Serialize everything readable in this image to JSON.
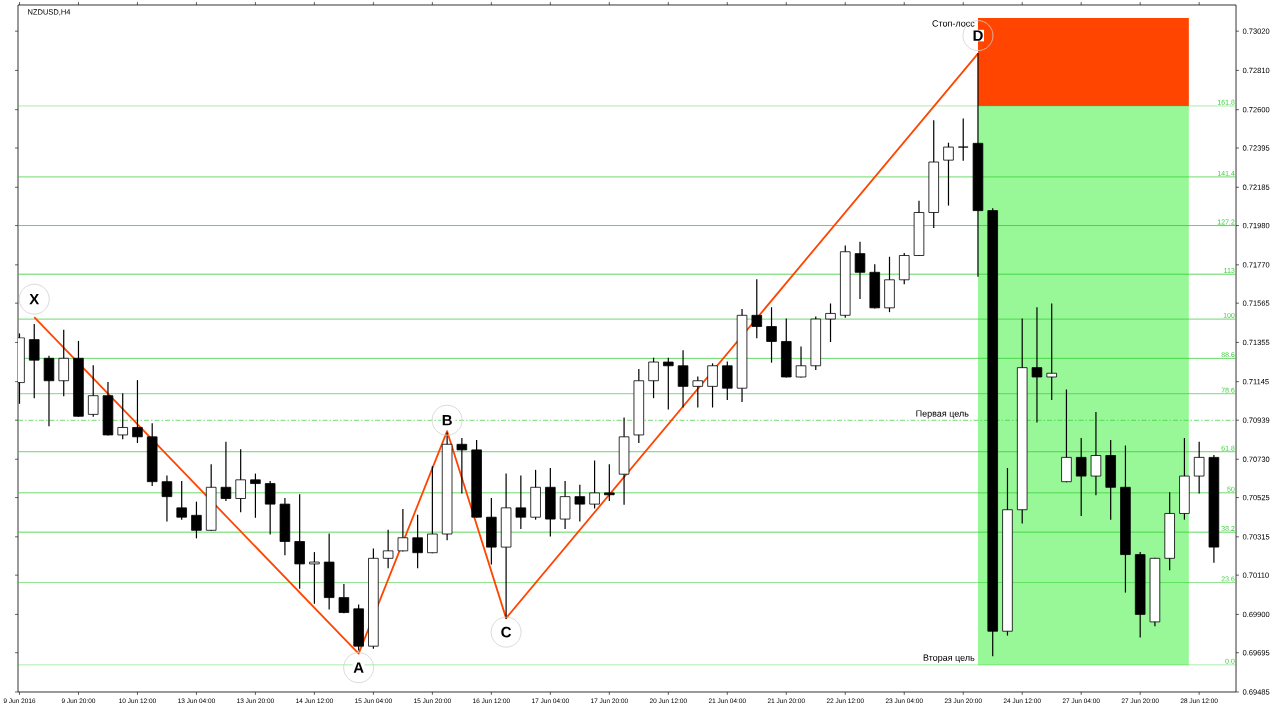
{
  "chart_data": {
    "type": "candlestick",
    "title": "NZDUSD,H4",
    "categories": [
      "9 Jun 2016",
      null,
      null,
      null,
      "9 Jun 20:00",
      null,
      null,
      null,
      "10 Jun 12:00",
      null,
      null,
      null,
      "13 Jun 04:00",
      null,
      null,
      null,
      "13 Jun 20:00",
      null,
      null,
      null,
      "14 Jun 12:00",
      null,
      null,
      null,
      "15 Jun 04:00",
      null,
      null,
      null,
      "15 Jun 20:00",
      null,
      null,
      null,
      "16 Jun 12:00",
      null,
      null,
      null,
      "17 Jun 04:00",
      null,
      null,
      null,
      "17 Jun 20:00",
      null,
      null,
      null,
      "20 Jun 12:00",
      null,
      null,
      null,
      "21 Jun 04:00",
      null,
      null,
      null,
      "21 Jun 20:00",
      null,
      null,
      null,
      "22 Jun 12:00",
      null,
      null,
      null,
      "23 Jun 04:00",
      null,
      null,
      null,
      "23 Jun 20:00",
      null,
      null,
      null,
      "24 Jun 12:00",
      null,
      null,
      null,
      "27 Jun 04:00",
      null,
      null,
      null,
      "27 Jun 20:00",
      null,
      null,
      null,
      "28 Jun 12:00",
      null
    ],
    "ohlc": [
      [
        0.7114,
        0.714,
        0.7103,
        0.7138
      ],
      [
        0.7137,
        0.7145,
        0.7106,
        0.7126
      ],
      [
        0.7127,
        0.7128,
        0.7091,
        0.7115
      ],
      [
        0.7115,
        0.7142,
        0.7107,
        0.7127
      ],
      [
        0.7127,
        0.7136,
        0.7096,
        0.7096
      ],
      [
        0.7097,
        0.7123,
        0.7096,
        0.7107
      ],
      [
        0.7107,
        0.7114,
        0.7086,
        0.7086
      ],
      [
        0.7086,
        0.7108,
        0.7084,
        0.709
      ],
      [
        0.709,
        0.7115,
        0.7082,
        0.7085
      ],
      [
        0.7085,
        0.7092,
        0.7059,
        0.7061
      ],
      [
        0.7061,
        0.7064,
        0.704,
        0.7053
      ],
      [
        0.7047,
        0.7061,
        0.7041,
        0.7042
      ],
      [
        0.7043,
        0.705,
        0.7031,
        0.7035
      ],
      [
        0.7035,
        0.707,
        0.7035,
        0.7058
      ],
      [
        0.7058,
        0.7082,
        0.7051,
        0.7052
      ],
      [
        0.7052,
        0.7078,
        0.7045,
        0.7062
      ],
      [
        0.7062,
        0.7065,
        0.7042,
        0.706
      ],
      [
        0.706,
        0.7061,
        0.7033,
        0.7049
      ],
      [
        0.7049,
        0.7052,
        0.7022,
        0.7029
      ],
      [
        0.7029,
        0.7054,
        0.7004,
        0.7017
      ],
      [
        0.7017,
        0.7023,
        0.6996,
        0.7018
      ],
      [
        0.7018,
        0.7033,
        0.6993,
        0.6999
      ],
      [
        0.6999,
        0.7006,
        0.6991,
        0.6991
      ],
      [
        0.6993,
        0.6995,
        0.6971,
        0.6973
      ],
      [
        0.6973,
        0.7025,
        0.6972,
        0.702
      ],
      [
        0.702,
        0.7035,
        0.7015,
        0.7024
      ],
      [
        0.7024,
        0.7046,
        0.7024,
        0.7031
      ],
      [
        0.7031,
        0.7043,
        0.7015,
        0.7023
      ],
      [
        0.7023,
        0.7069,
        0.7023,
        0.7033
      ],
      [
        0.7033,
        0.7087,
        0.703,
        0.7081
      ],
      [
        0.7081,
        0.7084,
        0.7055,
        0.7078
      ],
      [
        0.7078,
        0.7083,
        0.7042,
        0.7042
      ],
      [
        0.7042,
        0.7052,
        0.7017,
        0.7026
      ],
      [
        0.7026,
        0.7065,
        0.6988,
        0.7047
      ],
      [
        0.7047,
        0.7064,
        0.7036,
        0.7042
      ],
      [
        0.7042,
        0.7067,
        0.7041,
        0.7058
      ],
      [
        0.7058,
        0.7068,
        0.7032,
        0.7041
      ],
      [
        0.7041,
        0.7061,
        0.7036,
        0.7053
      ],
      [
        0.7053,
        0.7059,
        0.704,
        0.7049
      ],
      [
        0.7049,
        0.7072,
        0.7047,
        0.7055
      ],
      [
        0.7055,
        0.707,
        0.7051,
        0.7054
      ],
      [
        0.7065,
        0.7095,
        0.7049,
        0.7085
      ],
      [
        0.7086,
        0.7121,
        0.7082,
        0.7115
      ],
      [
        0.7115,
        0.7127,
        0.7106,
        0.7125
      ],
      [
        0.7125,
        0.7127,
        0.71,
        0.7123
      ],
      [
        0.7123,
        0.7131,
        0.7101,
        0.7112
      ],
      [
        0.7112,
        0.7117,
        0.7101,
        0.7115
      ],
      [
        0.7112,
        0.7124,
        0.7101,
        0.7123
      ],
      [
        0.7123,
        0.7125,
        0.7105,
        0.7111
      ],
      [
        0.7111,
        0.7153,
        0.7104,
        0.715
      ],
      [
        0.715,
        0.7169,
        0.7138,
        0.7144
      ],
      [
        0.7144,
        0.7154,
        0.7125,
        0.7136
      ],
      [
        0.7136,
        0.7148,
        0.7117,
        0.7117
      ],
      [
        0.7117,
        0.7133,
        0.7117,
        0.7123
      ],
      [
        0.7123,
        0.7149,
        0.7121,
        0.7148
      ],
      [
        0.7148,
        0.7156,
        0.7136,
        0.7151
      ],
      [
        0.715,
        0.7187,
        0.7149,
        0.7184
      ],
      [
        0.7183,
        0.7189,
        0.7159,
        0.7173
      ],
      [
        0.7173,
        0.7177,
        0.7154,
        0.7154
      ],
      [
        0.7154,
        0.7181,
        0.7152,
        0.7169
      ],
      [
        0.7169,
        0.7183,
        0.7167,
        0.7182
      ],
      [
        0.7182,
        0.7211,
        0.7182,
        0.7205
      ],
      [
        0.7205,
        0.7254,
        0.7197,
        0.7232
      ],
      [
        0.7233,
        0.7242,
        0.7209,
        0.724
      ],
      [
        0.724,
        0.7255,
        0.7233,
        0.724
      ],
      [
        0.7242,
        0.729,
        0.7171,
        0.7206
      ],
      [
        0.7206,
        0.7207,
        0.6968,
        0.6981
      ],
      [
        0.6981,
        0.7068,
        0.6979,
        0.7046
      ],
      [
        0.7046,
        0.7148,
        0.7039,
        0.7122
      ],
      [
        0.7122,
        0.7154,
        0.7093,
        0.7117
      ],
      [
        0.7117,
        0.7156,
        0.7105,
        0.7119
      ],
      [
        0.7061,
        0.711,
        0.7061,
        0.7074
      ],
      [
        0.7074,
        0.7084,
        0.7043,
        0.7064
      ],
      [
        0.7064,
        0.7098,
        0.7054,
        0.7075
      ],
      [
        0.7075,
        0.7083,
        0.7041,
        0.7058
      ],
      [
        0.7058,
        0.708,
        0.7002,
        0.7022
      ],
      [
        0.7022,
        0.7023,
        0.6978,
        0.699
      ],
      [
        0.6986,
        0.702,
        0.6984,
        0.702
      ],
      [
        0.702,
        0.7055,
        0.7014,
        0.7044
      ],
      [
        0.7044,
        0.7084,
        0.7041,
        0.7064
      ],
      [
        0.7064,
        0.7082,
        0.7055,
        0.7074
      ],
      [
        0.7074,
        0.7075,
        0.7018,
        0.7026
      ]
    ],
    "series": [
      {
        "type": "line",
        "color": "#ff4500",
        "values": [
          null,
          0.7149,
          null,
          null,
          null,
          null,
          null,
          null,
          null,
          null,
          null,
          null,
          null,
          null,
          null,
          null,
          null,
          null,
          null,
          null,
          null,
          null,
          null,
          0.6969,
          null,
          null,
          null,
          null,
          null,
          0.7088,
          null,
          null,
          null,
          0.6988,
          null,
          null,
          null,
          null,
          null,
          null,
          null,
          null,
          null,
          null,
          null,
          null,
          null,
          null,
          null,
          null,
          null,
          null,
          null,
          null,
          null,
          null,
          null,
          null,
          null,
          null,
          null,
          null,
          null,
          null,
          null,
          0.729,
          null,
          null,
          null,
          null,
          null,
          null,
          null,
          null,
          null,
          null,
          null,
          null,
          null,
          null,
          null,
          null
        ],
        "value_labels": [
          null,
          "X",
          null,
          null,
          null,
          null,
          null,
          null,
          null,
          null,
          null,
          null,
          null,
          null,
          null,
          null,
          null,
          null,
          null,
          null,
          null,
          null,
          null,
          "A",
          null,
          null,
          null,
          null,
          null,
          "B",
          null,
          null,
          null,
          "C",
          null,
          null,
          null,
          null,
          null,
          null,
          null,
          null,
          null,
          null,
          null,
          null,
          null,
          null,
          null,
          null,
          null,
          null,
          null,
          null,
          null,
          null,
          null,
          null,
          null,
          null,
          null,
          null,
          null,
          null,
          null,
          "D",
          null,
          null,
          null,
          null,
          null,
          null,
          null,
          null,
          null,
          null,
          null,
          null,
          null,
          null,
          null,
          null
        ]
      }
    ],
    "bands": [
      {
        "axis": "y",
        "from": 0.7262,
        "to": 0.7309,
        "label": "Стоп-лосс",
        "color": "#ff4500"
      },
      {
        "axis": "y",
        "from": 0.6963,
        "to": 0.7262,
        "label": "Вторая цель",
        "color": "#98f898"
      }
    ],
    "ref_lines": [
      {
        "axis": "y",
        "value": 0.7262,
        "color": "#33cc33"
      },
      {
        "axis": "y",
        "value": 0.7224,
        "color": "#33cc33"
      },
      {
        "axis": "y",
        "value": 0.7198,
        "color": "#33cc33"
      },
      {
        "axis": "y",
        "value": 0.7172,
        "color": "#33cc33"
      },
      {
        "axis": "y",
        "value": 0.7148,
        "color": "#33cc33"
      },
      {
        "axis": "y",
        "value": 0.7127,
        "color": "#33cc33"
      },
      {
        "axis": "y",
        "value": 0.7108,
        "color": "#33cc33"
      },
      {
        "axis": "y",
        "value": 0.70939,
        "label": "Первая цель",
        "color": "#33cc33",
        "line_style": "dashed"
      },
      {
        "axis": "y",
        "value": 0.7077,
        "color": "#33cc33"
      },
      {
        "axis": "y",
        "value": 0.7055,
        "color": "#33cc33"
      },
      {
        "axis": "y",
        "value": 0.7034,
        "color": "#33cc33"
      },
      {
        "axis": "y",
        "value": 0.7007,
        "color": "#33cc33"
      },
      {
        "axis": "y",
        "value": 0.6963,
        "color": "#33cc33"
      }
    ],
    "annotations": [
      {
        "text": "161.8",
        "y": 0.7262
      },
      {
        "text": "141.4",
        "y": 0.7224
      },
      {
        "text": "127.2",
        "y": 0.7198
      },
      {
        "text": "113",
        "y": 0.7172
      },
      {
        "text": "100",
        "y": 0.7148
      },
      {
        "text": "88.6",
        "y": 0.7127
      },
      {
        "text": "78.6",
        "y": 0.7108
      },
      {
        "text": "61.8",
        "y": 0.7077
      },
      {
        "text": "50",
        "y": 0.7055
      },
      {
        "text": "38.2",
        "y": 0.7034
      },
      {
        "text": "23.6",
        "y": 0.7007
      },
      {
        "text": "0.0",
        "y": 0.6963
      }
    ],
    "ylim": [
      0.69485,
      0.7316
    ],
    "yticks": [
      {
        "value": 0.7302,
        "label": "0.73020"
      },
      {
        "value": 0.7281,
        "label": "0.72810"
      },
      {
        "value": 0.726,
        "label": "0.72600"
      },
      {
        "value": 0.72395,
        "label": "0.72395"
      },
      {
        "value": 0.72185,
        "label": "0.72185"
      },
      {
        "value": 0.7198,
        "label": "0.71980"
      },
      {
        "value": 0.7177,
        "label": "0.71770"
      },
      {
        "value": 0.71565,
        "label": "0.71565"
      },
      {
        "value": 0.71355,
        "label": "0.71355"
      },
      {
        "value": 0.71145,
        "label": "0.71145"
      },
      {
        "value": 0.70939,
        "label": "0.70939"
      },
      {
        "value": 0.7073,
        "label": "0.70730"
      },
      {
        "value": 0.70525,
        "label": "0.70525"
      },
      {
        "value": 0.70315,
        "label": "0.70315"
      },
      {
        "value": 0.7011,
        "label": "0.70110"
      },
      {
        "value": 0.699,
        "label": "0.69900"
      },
      {
        "value": 0.69695,
        "label": "0.69695"
      },
      {
        "value": 0.69485,
        "label": "0.69485"
      }
    ]
  }
}
